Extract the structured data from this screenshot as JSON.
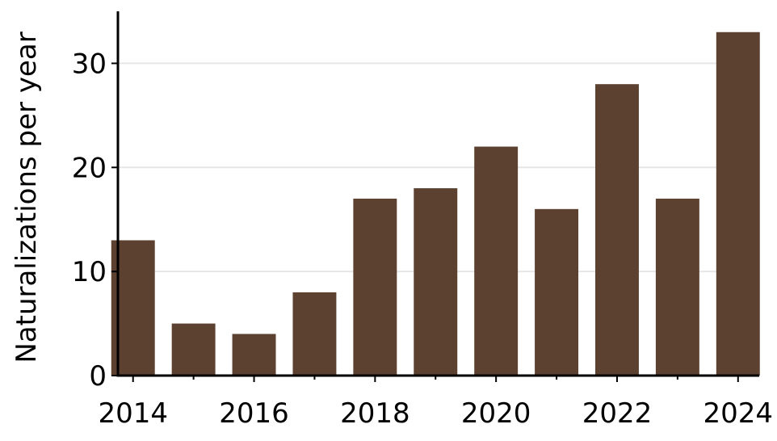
{
  "chart_data": {
    "type": "bar",
    "categories": [
      2014,
      2015,
      2016,
      2017,
      2018,
      2019,
      2020,
      2021,
      2022,
      2023,
      2024
    ],
    "values": [
      13,
      5,
      4,
      8,
      17,
      18,
      22,
      16,
      28,
      17,
      33
    ],
    "title": "",
    "xlabel": "",
    "ylabel": "Naturalizations per year",
    "ylim": [
      0,
      35
    ],
    "xlim": [
      2013.75,
      2024.35
    ],
    "xticks": [
      "2014",
      "2016",
      "2018",
      "2020",
      "2022",
      "2024"
    ],
    "yticks": [
      "0",
      "10",
      "20",
      "30"
    ],
    "grid": "horizontal",
    "legend": "none",
    "bar_color": "#5c4130"
  }
}
